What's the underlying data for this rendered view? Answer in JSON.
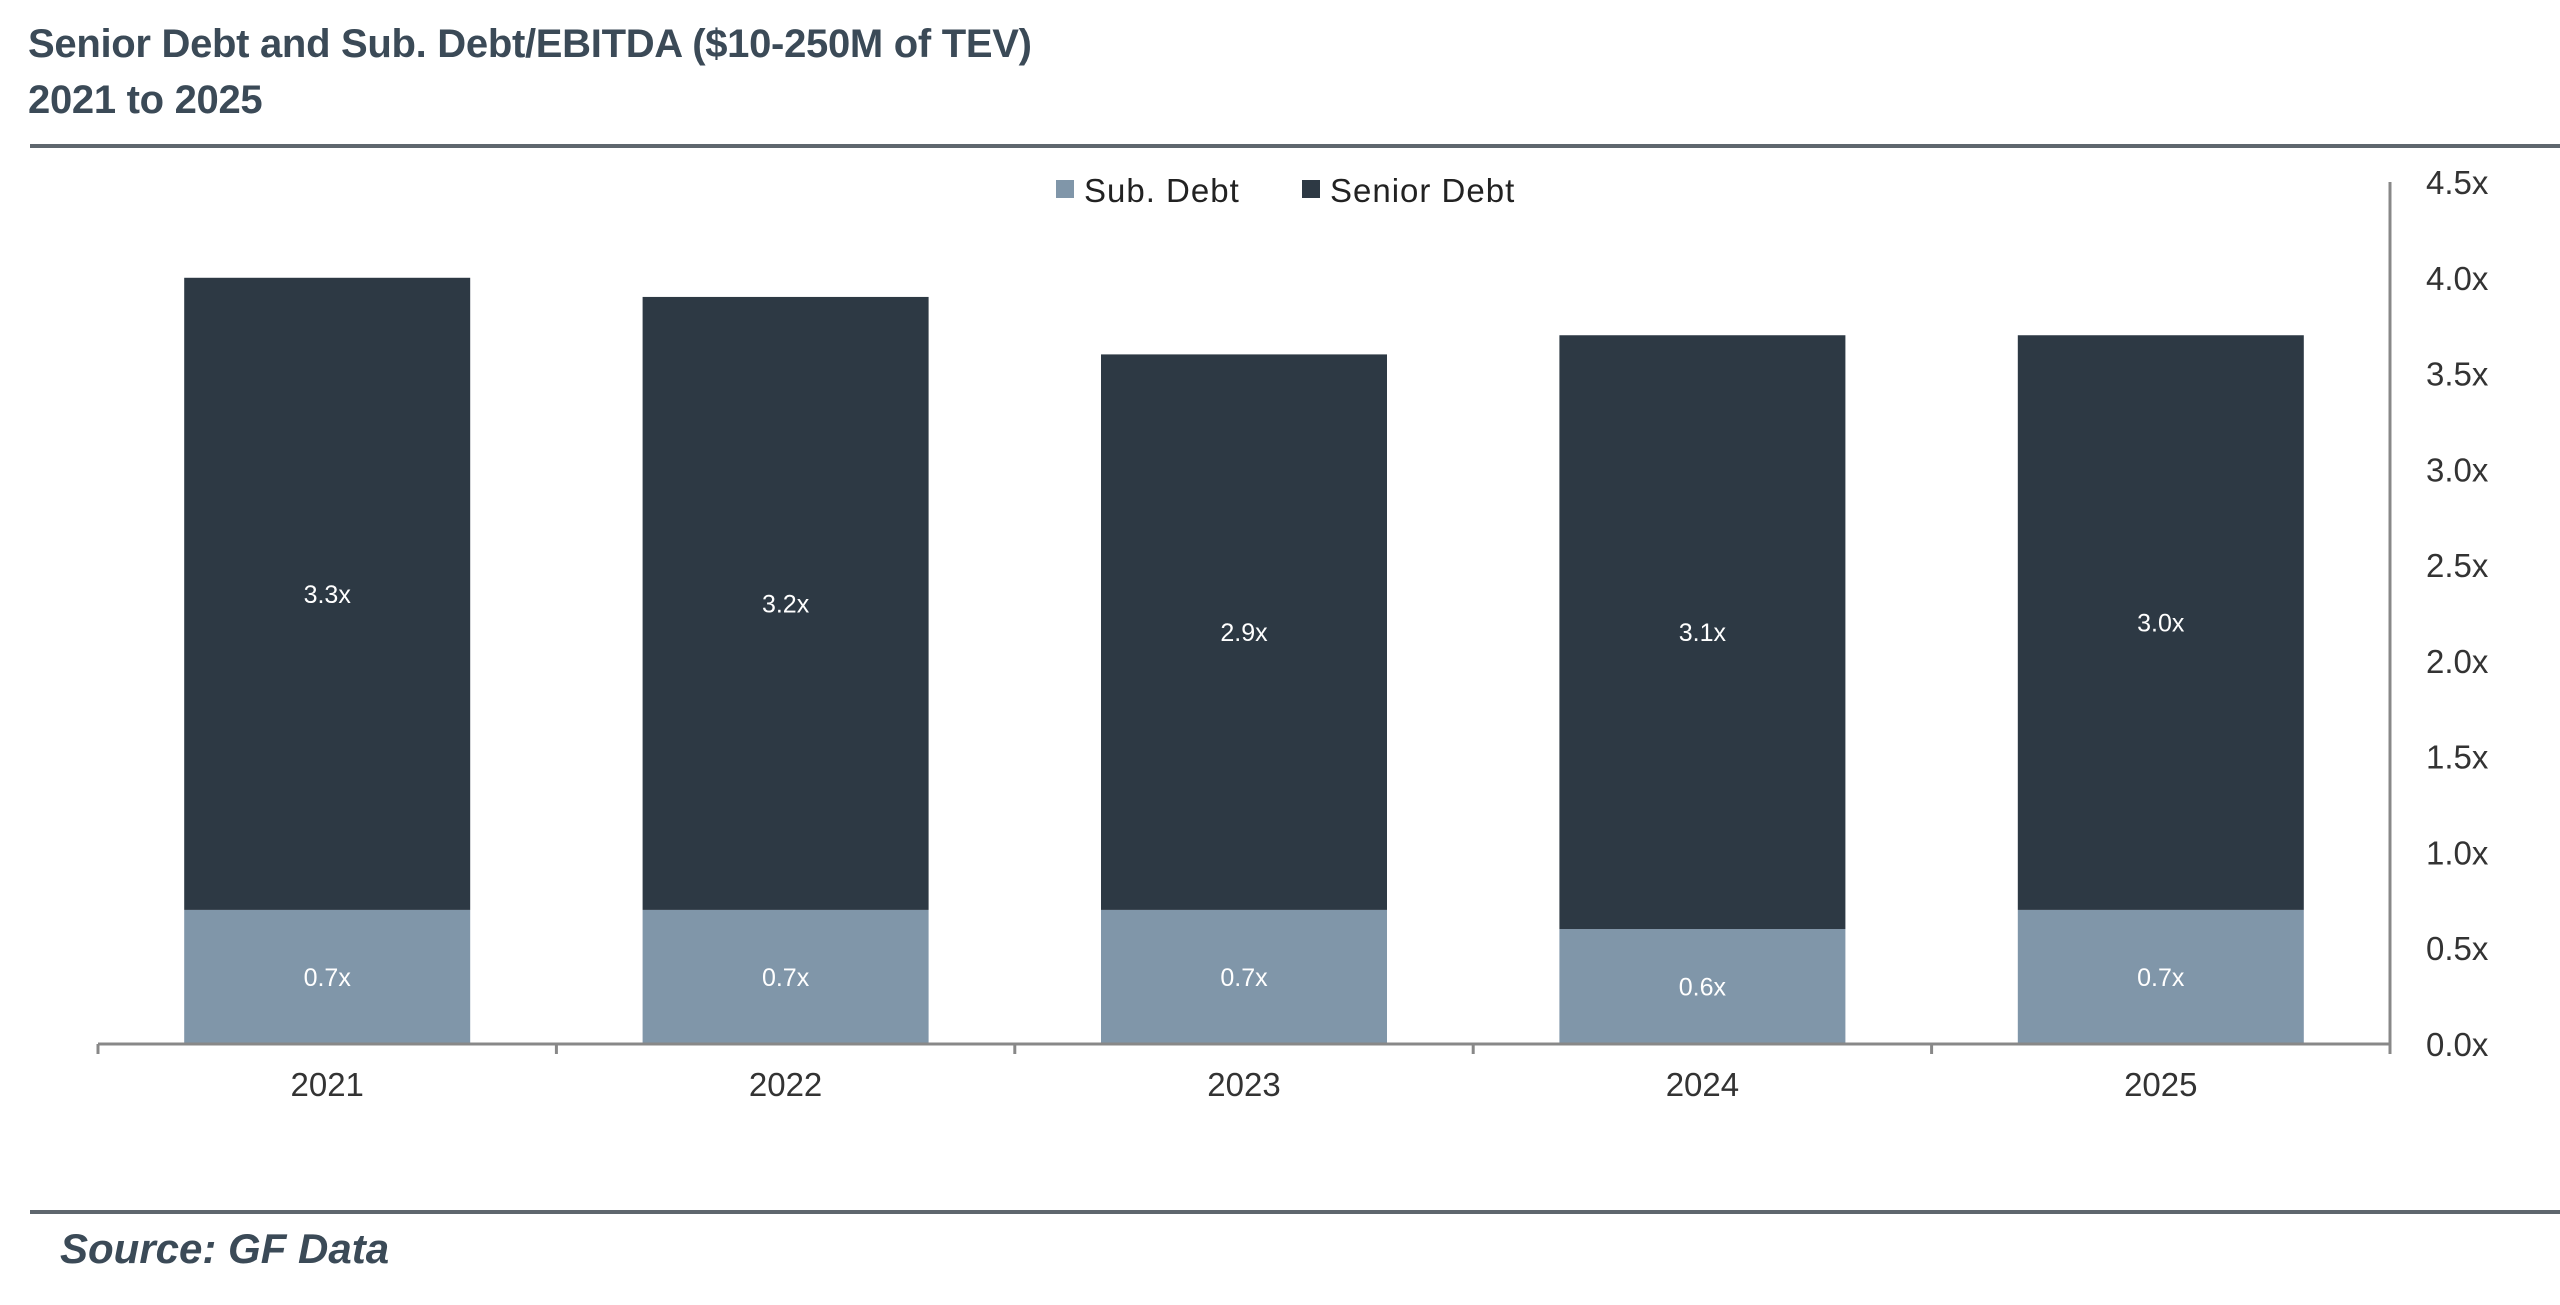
{
  "title_line1": "Senior Debt and Sub. Debt/EBITDA ($10-250M of TEV)",
  "title_line2": "2021 to 2025",
  "source": "Source: GF Data",
  "colors": {
    "sub_debt": "#8096a9",
    "senior_debt": "#2d3944",
    "axis": "#888888",
    "title": "#3b4a57"
  },
  "chart_data": {
    "type": "bar",
    "stacked": true,
    "categories": [
      "2021",
      "2022",
      "2023",
      "2024",
      "2025"
    ],
    "series": [
      {
        "name": "Sub. Debt",
        "values": [
          0.7,
          0.7,
          0.7,
          0.6,
          0.7
        ],
        "labels": [
          "0.7x",
          "0.7x",
          "0.7x",
          "0.6x",
          "0.7x"
        ]
      },
      {
        "name": "Senior Debt",
        "values": [
          3.3,
          3.2,
          2.9,
          3.1,
          3.0
        ],
        "labels": [
          "3.3x",
          "3.2x",
          "2.9x",
          "3.1x",
          "3.0x"
        ]
      }
    ],
    "yticks": [
      "0.0x",
      "0.5x",
      "1.0x",
      "1.5x",
      "2.0x",
      "2.5x",
      "3.0x",
      "3.5x",
      "4.0x",
      "4.5x"
    ],
    "ylim": [
      0,
      4.5
    ],
    "y_axis_side": "right",
    "legend_position": "top-center",
    "grid": false
  }
}
